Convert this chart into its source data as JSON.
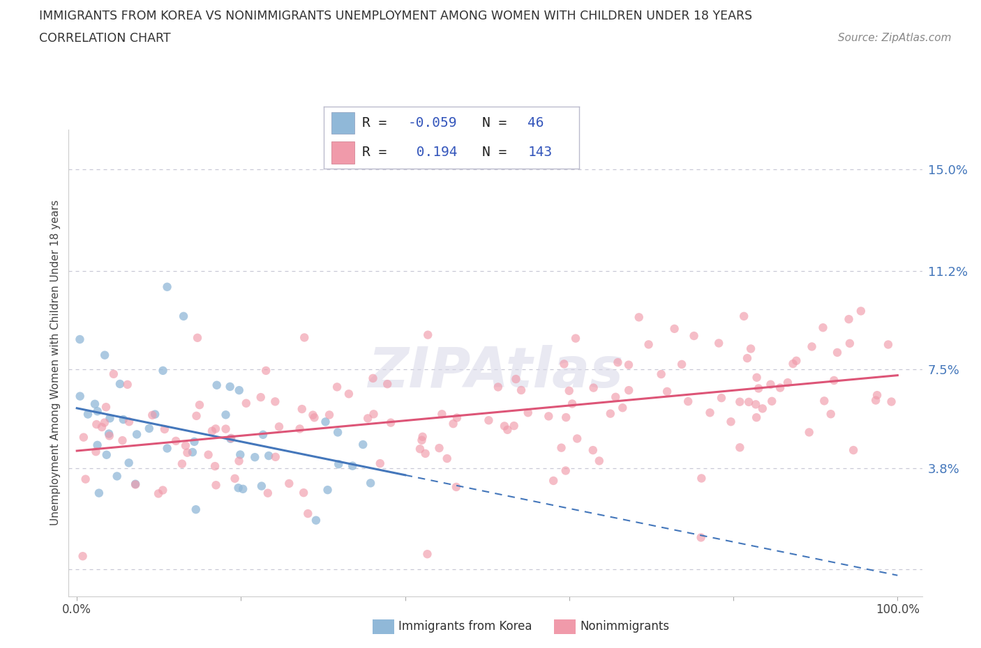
{
  "title_line1": "IMMIGRANTS FROM KOREA VS NONIMMIGRANTS UNEMPLOYMENT AMONG WOMEN WITH CHILDREN UNDER 18 YEARS",
  "title_line2": "CORRELATION CHART",
  "source_text": "Source: ZipAtlas.com",
  "ylabel": "Unemployment Among Women with Children Under 18 years",
  "korea_R": -0.059,
  "korea_N": 46,
  "nonimm_R": 0.194,
  "nonimm_N": 143,
  "korea_color": "#90b8d8",
  "nonimm_color": "#f09aaa",
  "korea_line_color": "#4477bb",
  "nonimm_line_color": "#dd5577",
  "ytick_vals": [
    0.0,
    3.8,
    7.5,
    11.2,
    15.0
  ],
  "ytick_labels": [
    "",
    "3.8%",
    "7.5%",
    "11.2%",
    "15.0%"
  ],
  "ytick_color": "#4477bb",
  "grid_color": "#bbbbcc",
  "background_color": "#ffffff",
  "watermark_text": "ZIPAtlas",
  "watermark_color": "#d8d8e8",
  "legend_R_color": "#3355bb",
  "legend_text_color": "#222222",
  "title_color": "#333333",
  "source_color": "#888888",
  "bottom_label_color": "#333333"
}
